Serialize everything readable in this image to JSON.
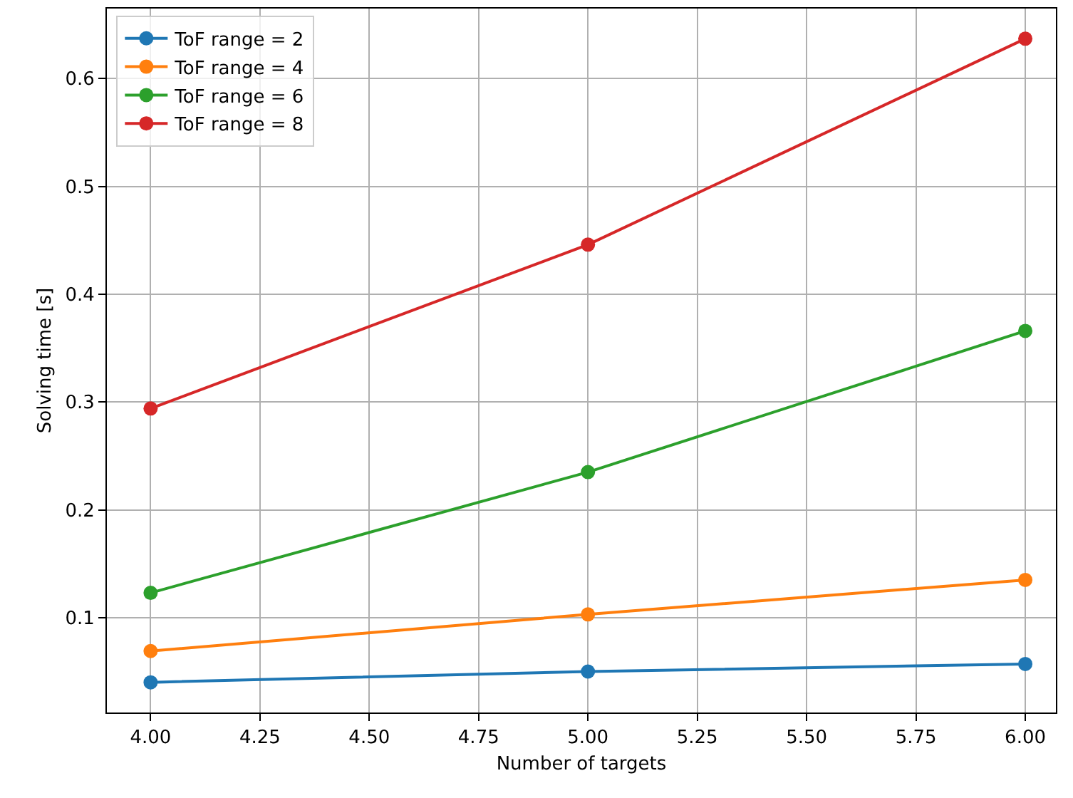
{
  "chart_data": {
    "type": "line",
    "xlabel": "Number of targets",
    "ylabel": "Solving time [s]",
    "x": [
      4,
      5,
      6
    ],
    "series": [
      {
        "name": "ToF range = 2",
        "color": "#1f77b4",
        "values": [
          0.04,
          0.05,
          0.057
        ]
      },
      {
        "name": "ToF range = 4",
        "color": "#ff7f0e",
        "values": [
          0.069,
          0.103,
          0.135
        ]
      },
      {
        "name": "ToF range = 6",
        "color": "#2ca02c",
        "values": [
          0.123,
          0.235,
          0.366
        ]
      },
      {
        "name": "ToF range = 8",
        "color": "#d62728",
        "values": [
          0.294,
          0.446,
          0.637
        ]
      }
    ],
    "xlim": [
      3.9,
      6.07
    ],
    "ylim": [
      0.012,
      0.665
    ],
    "xticks": [
      {
        "value": 4,
        "label": "4.00"
      },
      {
        "value": 4.25,
        "label": "4.25"
      },
      {
        "value": 4.5,
        "label": "4.50"
      },
      {
        "value": 4.75,
        "label": "4.75"
      },
      {
        "value": 5,
        "label": "5.00"
      },
      {
        "value": 5.25,
        "label": "5.25"
      },
      {
        "value": 5.5,
        "label": "5.50"
      },
      {
        "value": 5.75,
        "label": "5.75"
      },
      {
        "value": 6,
        "label": "6.00"
      }
    ],
    "yticks": [
      0.1,
      0.2,
      0.3,
      0.4,
      0.5,
      0.6
    ],
    "grid": true,
    "legend": "top left",
    "marker": "circle",
    "line_style": "solid"
  }
}
